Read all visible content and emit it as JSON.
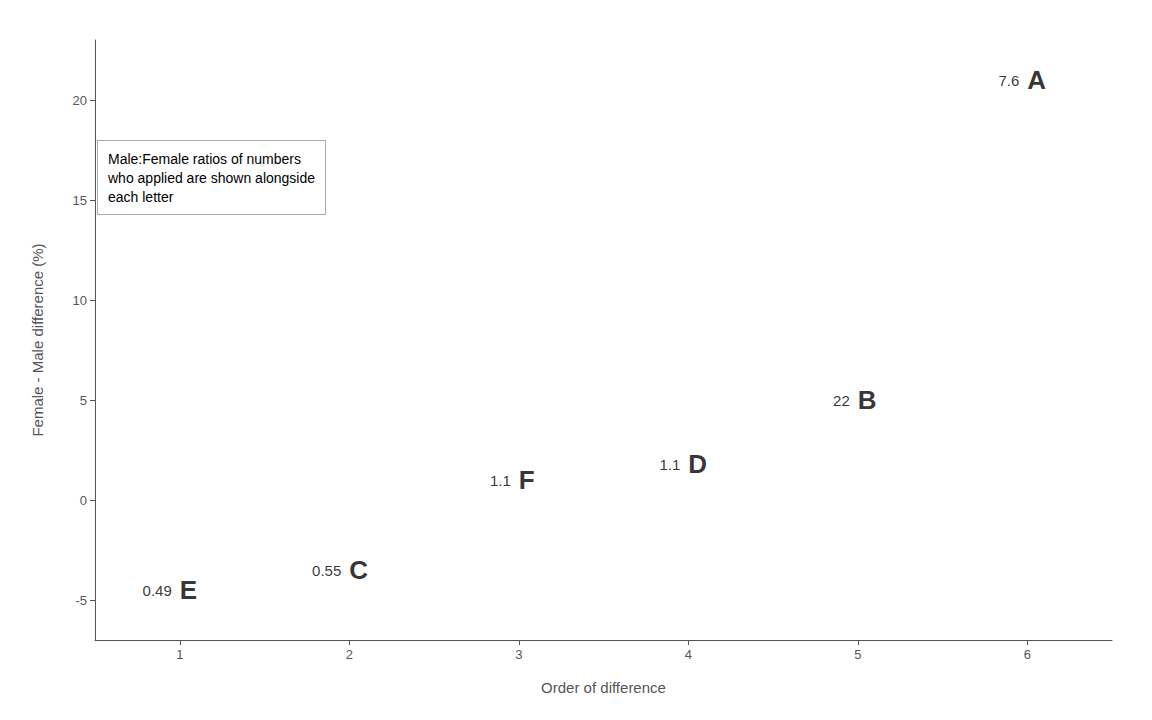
{
  "chart_data": {
    "type": "scatter",
    "x": [
      1,
      2,
      3,
      4,
      5,
      6
    ],
    "values": [
      -4.5,
      -3.5,
      1.0,
      1.8,
      5.0,
      21.0
    ],
    "letters": [
      "E",
      "C",
      "F",
      "D",
      "B",
      "A"
    ],
    "ratios": [
      "0.49",
      "0.55",
      "1.1",
      "1.1",
      "22",
      "7.6"
    ],
    "xlabel": "Order of difference",
    "ylabel": "Female - Male difference (%)",
    "xlim": [
      0.5,
      6.5
    ],
    "ylim": [
      -7,
      23
    ],
    "xticks": [
      1,
      2,
      3,
      4,
      5,
      6
    ],
    "yticks": [
      -5,
      0,
      5,
      10,
      15,
      20
    ],
    "annotation": "Male:Female ratios of numbers\nwho applied are shown alongside\neach letter",
    "grid": false
  }
}
